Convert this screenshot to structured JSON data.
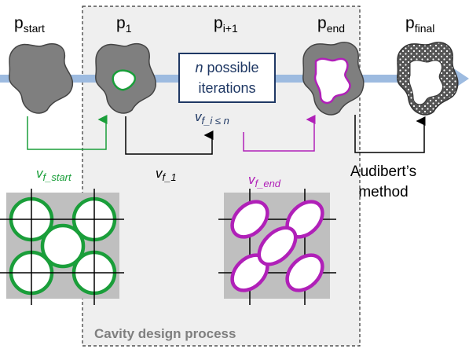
{
  "stages": [
    {
      "base": "p",
      "sub": "start"
    },
    {
      "base": "p",
      "sub": "1"
    },
    {
      "base": "p",
      "sub": "i+1"
    },
    {
      "base": "p",
      "sub": "end"
    },
    {
      "base": "p",
      "sub": "final"
    }
  ],
  "iteration_box": {
    "var": "n",
    "rest": " possible",
    "line2": "iterations"
  },
  "velocities": [
    {
      "base": "v",
      "sub": "f_start"
    },
    {
      "base": "v",
      "sub": "f_1"
    },
    {
      "base": "v",
      "sub": "f_i ≤ n"
    },
    {
      "base": "v",
      "sub": "f_end"
    }
  ],
  "method": {
    "line1": "Audibert’s",
    "line2": "method"
  },
  "process_label": "Cavity design process"
}
